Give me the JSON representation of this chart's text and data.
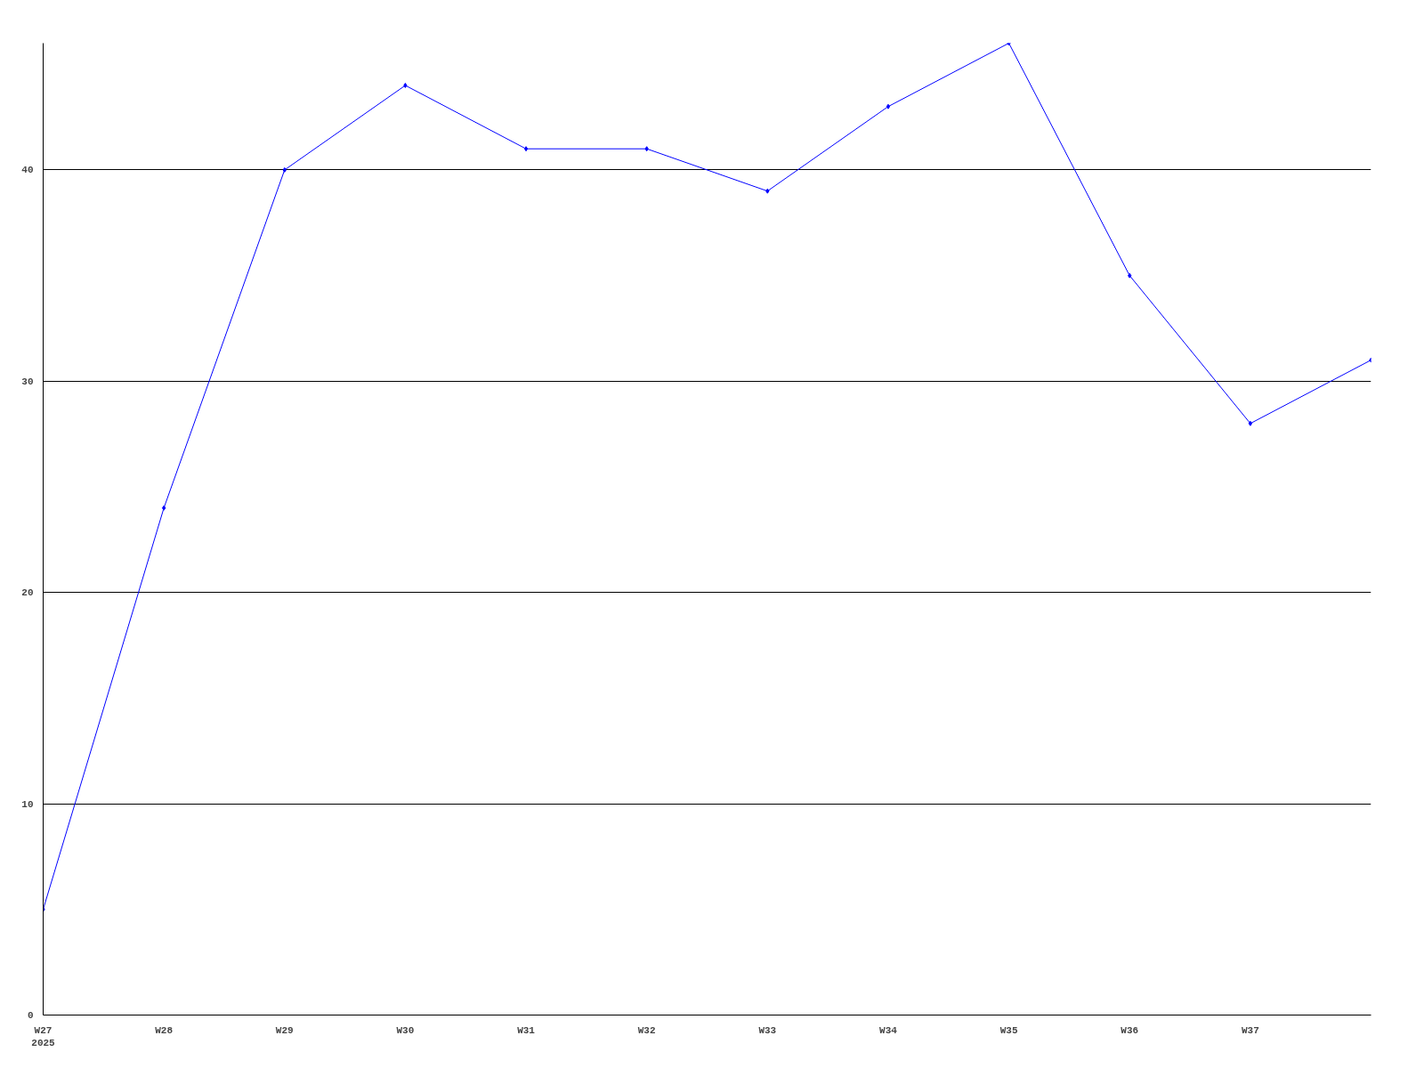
{
  "chart_data": {
    "type": "line",
    "categories": [
      "W27\n2025",
      "W28",
      "W29",
      "W30",
      "W31",
      "W32",
      "W33",
      "W34",
      "W35",
      "W36",
      "W37",
      null
    ],
    "series": [
      {
        "color": "#0000ff",
        "values": [
          5,
          24,
          40,
          44,
          41,
          41,
          39,
          43,
          46,
          35,
          28,
          31
        ]
      }
    ],
    "ylim": [
      0,
      46
    ],
    "yticks": [
      0,
      10,
      20,
      30,
      40
    ],
    "grid": "y",
    "marker": "diamond",
    "line_style": "solid"
  }
}
